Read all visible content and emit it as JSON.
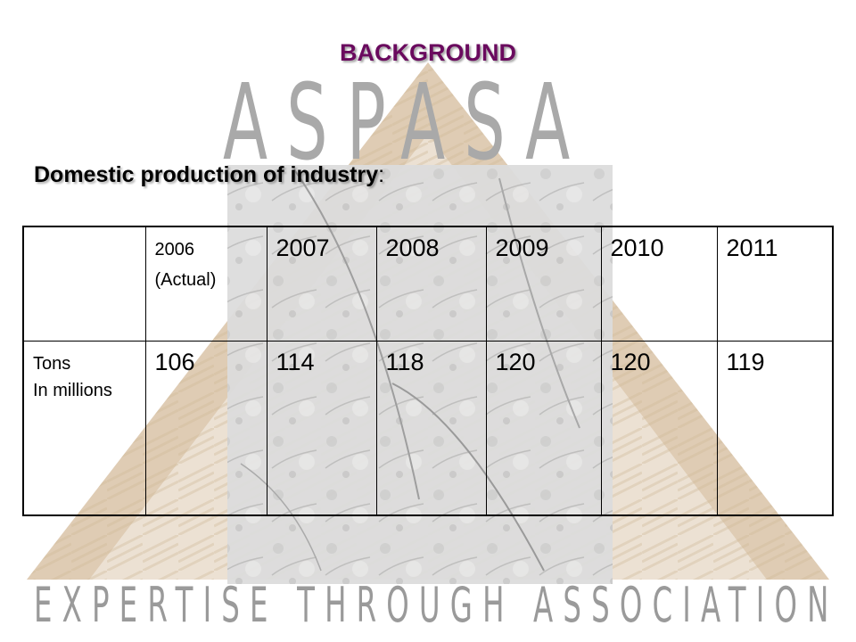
{
  "slide": {
    "title": "BACKGROUND",
    "subtitle_main": "Domestic production of industry",
    "subtitle_colon": ":",
    "brand_word": "ASPASA",
    "tagline": "EXPERTISE THROUGH ASSOCIATION"
  },
  "table": {
    "header": {
      "first_cell": "",
      "year_2006_line1": "2006",
      "year_2006_line2": "(Actual)",
      "years": [
        "2007",
        "2008",
        "2009",
        "2010",
        "2011"
      ]
    },
    "row": {
      "label_line1": "Tons",
      "label_line2": "In millions",
      "values": [
        "106",
        "114",
        "118",
        "120",
        "120",
        "119"
      ]
    }
  },
  "colors": {
    "title": "#6a0a5e",
    "brand_gray": "#a9a9a9",
    "pyramid_tan": "#d9c3a6",
    "stone_gray": "#d8d8d8"
  }
}
